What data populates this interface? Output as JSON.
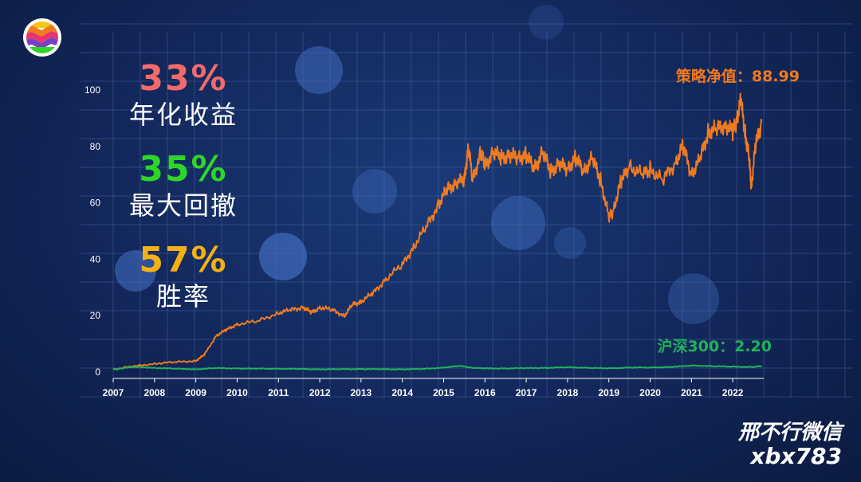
{
  "stats": [
    {
      "value": "33%",
      "label": "年化收益",
      "color": "#f26a6a"
    },
    {
      "value": "35%",
      "label": "最大回撤",
      "color": "#2fd62a"
    },
    {
      "value": "57%",
      "label": "胜率",
      "color": "#f5b014"
    }
  ],
  "watermark": {
    "line1": "邢不行微信",
    "line2": "xbx783"
  },
  "chart_data": {
    "type": "line",
    "title": "",
    "xlabel": "",
    "ylabel": "",
    "ylim": [
      0,
      100
    ],
    "xlim": [
      2007.0,
      2022.75
    ],
    "y_ticks": [
      0,
      20,
      40,
      60,
      80,
      100
    ],
    "x_ticks": [
      "2007",
      "2008",
      "2009",
      "2010",
      "2011",
      "2012",
      "2013",
      "2014",
      "2015",
      "2016",
      "2017",
      "2018",
      "2019",
      "2020",
      "2021",
      "2022"
    ],
    "grid": true,
    "series": [
      {
        "name": "策略净值",
        "color": "#f07a1e",
        "end_label": "策略净值：88.99",
        "points": [
          [
            2007.0,
            1
          ],
          [
            2007.5,
            2
          ],
          [
            2008.0,
            3
          ],
          [
            2008.5,
            3.5
          ],
          [
            2009.0,
            4
          ],
          [
            2009.2,
            6
          ],
          [
            2009.5,
            13
          ],
          [
            2009.75,
            15
          ],
          [
            2010.0,
            17
          ],
          [
            2010.5,
            18
          ],
          [
            2011.0,
            21
          ],
          [
            2011.3,
            22
          ],
          [
            2011.6,
            23
          ],
          [
            2011.8,
            21
          ],
          [
            2012.0,
            23
          ],
          [
            2012.3,
            22
          ],
          [
            2012.6,
            20
          ],
          [
            2012.8,
            24
          ],
          [
            2013.0,
            25
          ],
          [
            2013.3,
            28
          ],
          [
            2013.6,
            33
          ],
          [
            2014.0,
            38
          ],
          [
            2014.3,
            45
          ],
          [
            2014.6,
            52
          ],
          [
            2014.9,
            60
          ],
          [
            2015.1,
            65
          ],
          [
            2015.3,
            67
          ],
          [
            2015.5,
            68
          ],
          [
            2015.6,
            80
          ],
          [
            2015.7,
            68
          ],
          [
            2015.9,
            78
          ],
          [
            2016.0,
            73
          ],
          [
            2016.2,
            78
          ],
          [
            2016.4,
            76
          ],
          [
            2016.6,
            77
          ],
          [
            2016.8,
            76
          ],
          [
            2017.0,
            77
          ],
          [
            2017.2,
            72
          ],
          [
            2017.4,
            78
          ],
          [
            2017.6,
            71
          ],
          [
            2017.8,
            74
          ],
          [
            2018.0,
            72
          ],
          [
            2018.2,
            76
          ],
          [
            2018.4,
            71
          ],
          [
            2018.6,
            76
          ],
          [
            2018.8,
            68
          ],
          [
            2019.0,
            55
          ],
          [
            2019.1,
            57
          ],
          [
            2019.3,
            68
          ],
          [
            2019.5,
            73
          ],
          [
            2019.8,
            70
          ],
          [
            2020.0,
            72
          ],
          [
            2020.3,
            68
          ],
          [
            2020.6,
            74
          ],
          [
            2020.8,
            80
          ],
          [
            2021.0,
            70
          ],
          [
            2021.2,
            75
          ],
          [
            2021.4,
            85
          ],
          [
            2021.6,
            86
          ],
          [
            2021.8,
            88
          ],
          [
            2022.0,
            85
          ],
          [
            2022.1,
            90
          ],
          [
            2022.2,
            96
          ],
          [
            2022.3,
            85
          ],
          [
            2022.4,
            75
          ],
          [
            2022.45,
            66
          ],
          [
            2022.55,
            80
          ],
          [
            2022.7,
            88.99
          ]
        ]
      },
      {
        "name": "沪深300",
        "color": "#1fb35a",
        "end_label": "沪深300：2.20",
        "points": [
          [
            2007.0,
            1
          ],
          [
            2007.5,
            1.8
          ],
          [
            2008.0,
            1.5
          ],
          [
            2008.5,
            1.2
          ],
          [
            2009.0,
            1.0
          ],
          [
            2009.5,
            1.4
          ],
          [
            2010.0,
            1.3
          ],
          [
            2010.5,
            1.2
          ],
          [
            2011.0,
            1.2
          ],
          [
            2011.5,
            1.1
          ],
          [
            2012.0,
            1.0
          ],
          [
            2012.5,
            1.0
          ],
          [
            2013.0,
            1.1
          ],
          [
            2013.5,
            1.0
          ],
          [
            2014.0,
            1.0
          ],
          [
            2014.5,
            1.1
          ],
          [
            2015.0,
            1.6
          ],
          [
            2015.4,
            2.2
          ],
          [
            2015.7,
            1.5
          ],
          [
            2016.0,
            1.3
          ],
          [
            2016.5,
            1.3
          ],
          [
            2017.0,
            1.4
          ],
          [
            2017.5,
            1.5
          ],
          [
            2018.0,
            1.7
          ],
          [
            2018.5,
            1.5
          ],
          [
            2019.0,
            1.3
          ],
          [
            2019.5,
            1.6
          ],
          [
            2020.0,
            1.6
          ],
          [
            2020.5,
            1.8
          ],
          [
            2021.0,
            2.3
          ],
          [
            2021.5,
            2.1
          ],
          [
            2022.0,
            1.9
          ],
          [
            2022.5,
            1.8
          ],
          [
            2022.7,
            2.2
          ]
        ]
      }
    ]
  }
}
